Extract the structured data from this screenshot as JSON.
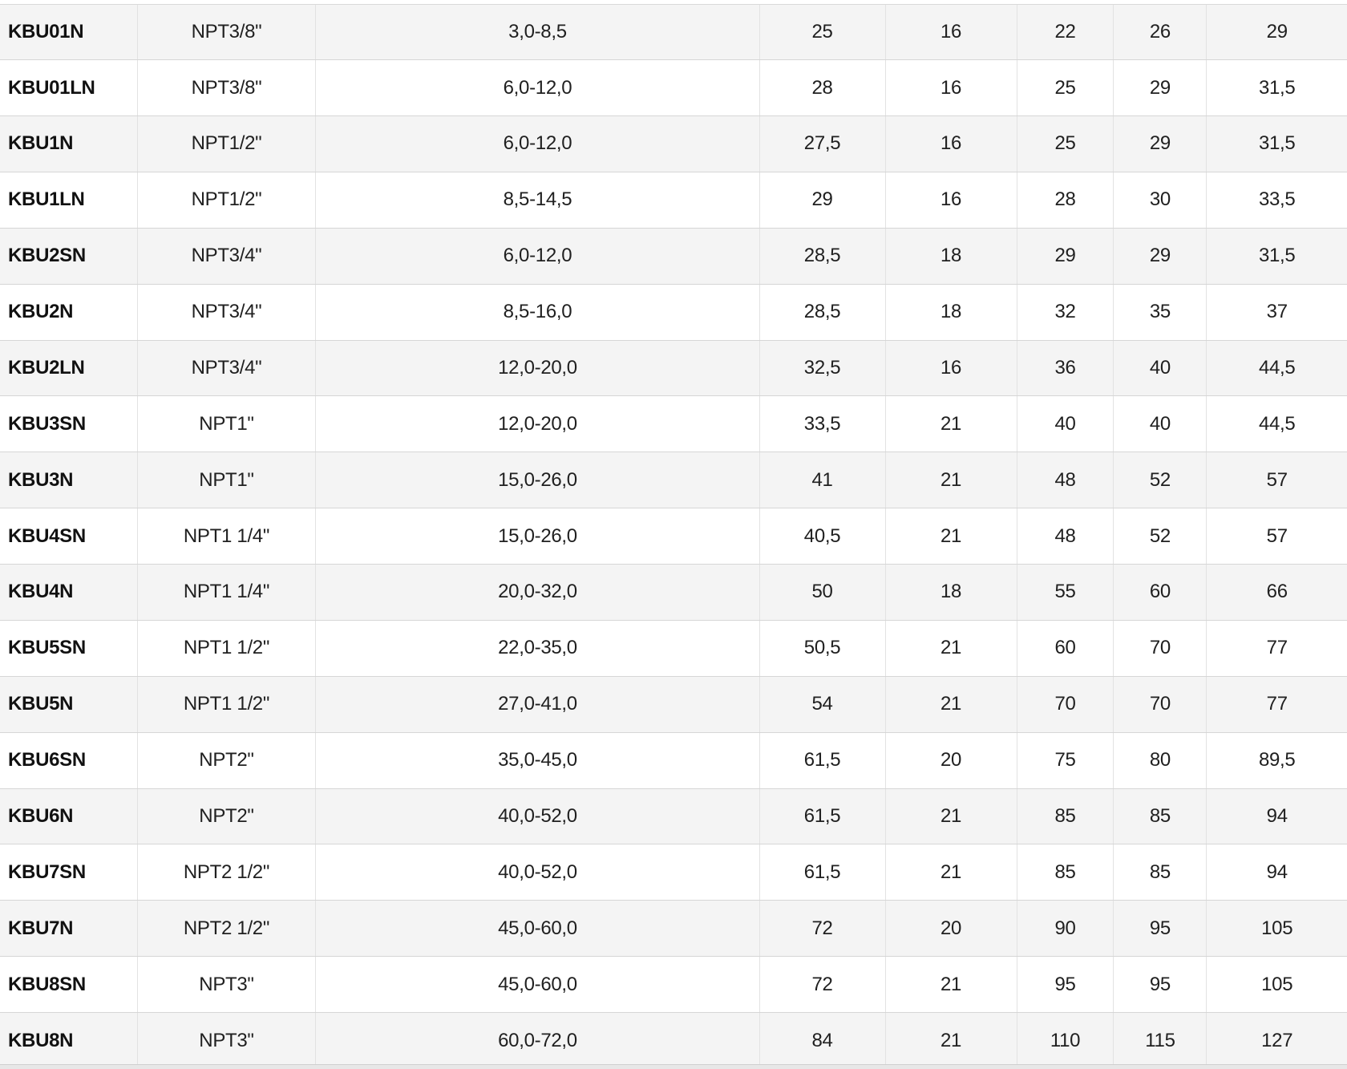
{
  "colors": {
    "stripe_row": "#f4f4f4",
    "plain_row": "#ffffff",
    "grid_border": "#d9d9d9",
    "text": "#202020"
  },
  "table": {
    "rows": [
      {
        "cells": [
          "KBU01N",
          "NPT3/8\"",
          "3,0-8,5",
          "25",
          "16",
          "22",
          "26",
          "29"
        ]
      },
      {
        "cells": [
          "KBU01LN",
          "NPT3/8\"",
          "6,0-12,0",
          "28",
          "16",
          "25",
          "29",
          "31,5"
        ]
      },
      {
        "cells": [
          "KBU1N",
          "NPT1/2\"",
          "6,0-12,0",
          "27,5",
          "16",
          "25",
          "29",
          "31,5"
        ]
      },
      {
        "cells": [
          "KBU1LN",
          "NPT1/2\"",
          "8,5-14,5",
          "29",
          "16",
          "28",
          "30",
          "33,5"
        ]
      },
      {
        "cells": [
          "KBU2SN",
          "NPT3/4\"",
          "6,0-12,0",
          "28,5",
          "18",
          "29",
          "29",
          "31,5"
        ]
      },
      {
        "cells": [
          "KBU2N",
          "NPT3/4\"",
          "8,5-16,0",
          "28,5",
          "18",
          "32",
          "35",
          "37"
        ]
      },
      {
        "cells": [
          "KBU2LN",
          "NPT3/4\"",
          "12,0-20,0",
          "32,5",
          "16",
          "36",
          "40",
          "44,5"
        ]
      },
      {
        "cells": [
          "KBU3SN",
          "NPT1\"",
          "12,0-20,0",
          "33,5",
          "21",
          "40",
          "40",
          "44,5"
        ]
      },
      {
        "cells": [
          "KBU3N",
          "NPT1\"",
          "15,0-26,0",
          "41",
          "21",
          "48",
          "52",
          "57"
        ]
      },
      {
        "cells": [
          "KBU4SN",
          "NPT1 1/4\"",
          "15,0-26,0",
          "40,5",
          "21",
          "48",
          "52",
          "57"
        ]
      },
      {
        "cells": [
          "KBU4N",
          "NPT1 1/4\"",
          "20,0-32,0",
          "50",
          "18",
          "55",
          "60",
          "66"
        ]
      },
      {
        "cells": [
          "KBU5SN",
          "NPT1 1/2\"",
          "22,0-35,0",
          "50,5",
          "21",
          "60",
          "70",
          "77"
        ]
      },
      {
        "cells": [
          "KBU5N",
          "NPT1 1/2\"",
          "27,0-41,0",
          "54",
          "21",
          "70",
          "70",
          "77"
        ]
      },
      {
        "cells": [
          "KBU6SN",
          "NPT2\"",
          "35,0-45,0",
          "61,5",
          "20",
          "75",
          "80",
          "89,5"
        ]
      },
      {
        "cells": [
          "KBU6N",
          "NPT2\"",
          "40,0-52,0",
          "61,5",
          "21",
          "85",
          "85",
          "94"
        ]
      },
      {
        "cells": [
          "KBU7SN",
          "NPT2 1/2\"",
          "40,0-52,0",
          "61,5",
          "21",
          "85",
          "85",
          "94"
        ]
      },
      {
        "cells": [
          "KBU7N",
          "NPT2 1/2\"",
          "45,0-60,0",
          "72",
          "20",
          "90",
          "95",
          "105"
        ]
      },
      {
        "cells": [
          "KBU8SN",
          "NPT3\"",
          "45,0-60,0",
          "72",
          "21",
          "95",
          "95",
          "105"
        ]
      },
      {
        "cells": [
          "KBU8N",
          "NPT3\"",
          "60,0-72,0",
          "84",
          "21",
          "110",
          "115",
          "127"
        ]
      }
    ]
  }
}
